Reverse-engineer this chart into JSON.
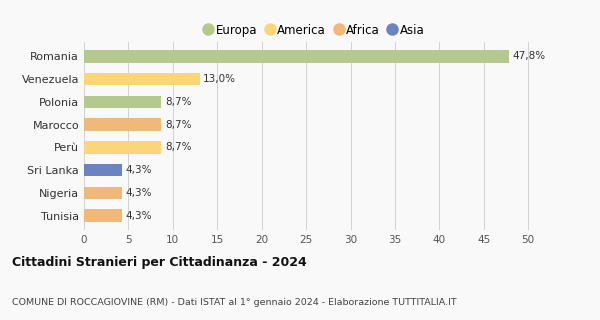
{
  "countries": [
    "Romania",
    "Venezuela",
    "Polonia",
    "Marocco",
    "Perù",
    "Sri Lanka",
    "Nigeria",
    "Tunisia"
  ],
  "values": [
    47.8,
    13.0,
    8.7,
    8.7,
    8.7,
    4.3,
    4.3,
    4.3
  ],
  "labels": [
    "47,8%",
    "13,0%",
    "8,7%",
    "8,7%",
    "8,7%",
    "4,3%",
    "4,3%",
    "4,3%"
  ],
  "colors": [
    "#b5c98e",
    "#f9d67a",
    "#b5c98e",
    "#f0b87a",
    "#f9d67a",
    "#6b83c1",
    "#f0b87a",
    "#f0b87a"
  ],
  "legend": [
    {
      "label": "Europa",
      "color": "#b5c98e"
    },
    {
      "label": "America",
      "color": "#f9d67a"
    },
    {
      "label": "Africa",
      "color": "#f0b87a"
    },
    {
      "label": "Asia",
      "color": "#6b83c1"
    }
  ],
  "title": "Cittadini Stranieri per Cittadinanza - 2024",
  "subtitle": "COMUNE DI ROCCAGIOVINE (RM) - Dati ISTAT al 1° gennaio 2024 - Elaborazione TUTTITALIA.IT",
  "xlim": [
    0,
    52
  ],
  "xticks": [
    0,
    5,
    10,
    15,
    20,
    25,
    30,
    35,
    40,
    45,
    50
  ],
  "background_color": "#f9f9f9",
  "grid_color": "#cccccc"
}
